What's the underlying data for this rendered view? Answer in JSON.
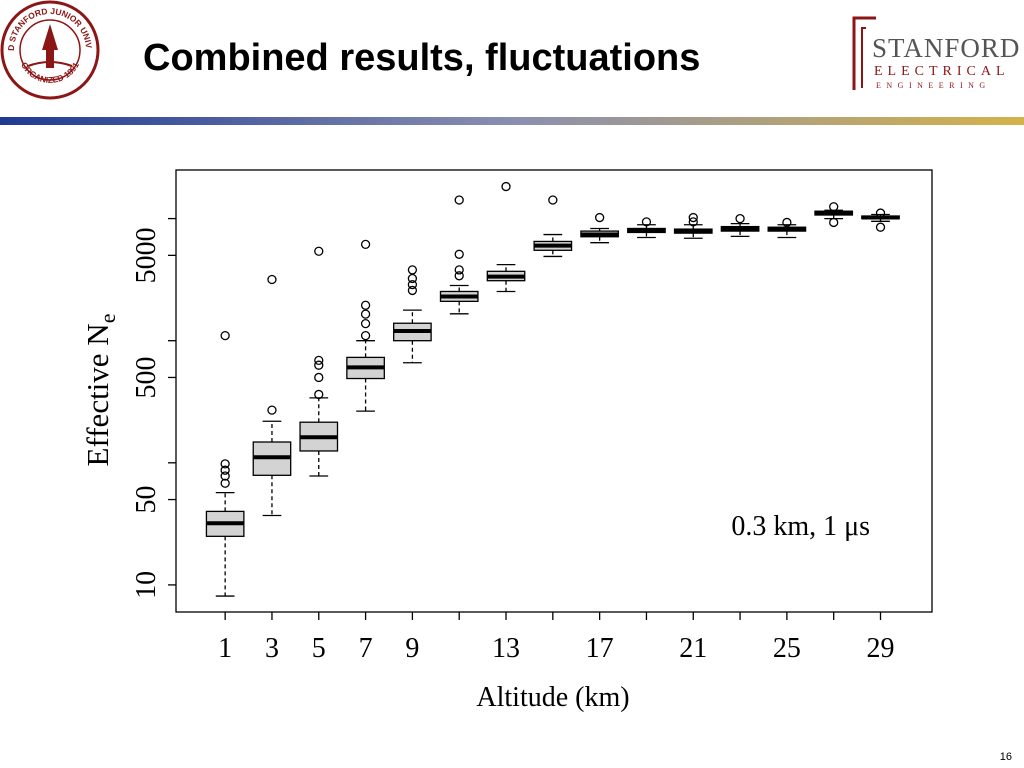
{
  "header": {
    "title": "Combined results, fluctuations",
    "seal_text": "LELAND STANFORD JUNIOR UNIVERSITY",
    "seal_year": "ORGANIZED 1891",
    "logo_line1": "STANFORD",
    "logo_line2": "ELECTRICAL",
    "logo_line3": "ENGINEERING"
  },
  "page_number": "16",
  "chart_data": {
    "type": "box",
    "xlabel": "Altitude (km)",
    "ylabel": "Effective N",
    "ylabel_subscript": "e",
    "annotation": "0.3 km, 1 μs",
    "log_y": true,
    "box_color": "#d3d3d3",
    "xlim": [
      -1.1,
      31.2
    ],
    "xticks": [
      1,
      3,
      5,
      7,
      9,
      13,
      17,
      21,
      25,
      29
    ],
    "minor_xticks": [
      11,
      15,
      19,
      23,
      27
    ],
    "ylim": [
      6,
      25000
    ],
    "yticks": [
      10,
      50,
      500,
      5000
    ],
    "minor_yticks": [
      100,
      1000,
      10000
    ],
    "boxes": [
      {
        "x": 1,
        "low": 8.1,
        "q1": 25,
        "median": 32,
        "q3": 40,
        "high": 57,
        "outliers": [
          68,
          78,
          87,
          98,
          1100
        ]
      },
      {
        "x": 3,
        "low": 37,
        "q1": 79,
        "median": 111,
        "q3": 148,
        "high": 219,
        "outliers": [
          270,
          3170
        ]
      },
      {
        "x": 5,
        "low": 78,
        "q1": 125,
        "median": 162,
        "q3": 215,
        "high": 340,
        "outliers": [
          363,
          500,
          630,
          690,
          5400
        ]
      },
      {
        "x": 7,
        "low": 265,
        "q1": 490,
        "median": 605,
        "q3": 730,
        "high": 1000,
        "outliers": [
          1100,
          1380,
          1650,
          1950,
          6150
        ]
      },
      {
        "x": 9,
        "low": 660,
        "q1": 1000,
        "median": 1200,
        "q3": 1390,
        "high": 1780,
        "outliers": [
          2580,
          2880,
          3230,
          3800
        ]
      },
      {
        "x": 11,
        "low": 1660,
        "q1": 2100,
        "median": 2300,
        "q3": 2530,
        "high": 2830,
        "outliers": [
          3400,
          3800,
          5100,
          14200
        ]
      },
      {
        "x": 13,
        "low": 2530,
        "q1": 3100,
        "median": 3350,
        "q3": 3700,
        "high": 4200,
        "outliers": [
          18300
        ]
      },
      {
        "x": 15,
        "low": 4900,
        "q1": 5500,
        "median": 6000,
        "q3": 6500,
        "high": 7400,
        "outliers": [
          14200
        ]
      },
      {
        "x": 17,
        "low": 6350,
        "q1": 7100,
        "median": 7400,
        "q3": 7900,
        "high": 8300,
        "outliers": [
          10200
        ]
      },
      {
        "x": 19,
        "low": 7000,
        "q1": 7700,
        "median": 8000,
        "q3": 8300,
        "high": 8900,
        "outliers": [
          9400
        ]
      },
      {
        "x": 21,
        "low": 6900,
        "q1": 7600,
        "median": 7900,
        "q3": 8200,
        "high": 8900,
        "outliers": [
          9400,
          10200
        ]
      },
      {
        "x": 23,
        "low": 7150,
        "q1": 7900,
        "median": 8300,
        "q3": 8600,
        "high": 9100,
        "outliers": [
          10000
        ]
      },
      {
        "x": 25,
        "low": 7000,
        "q1": 7900,
        "median": 8200,
        "q3": 8500,
        "high": 8900,
        "outliers": [
          9300
        ]
      },
      {
        "x": 27,
        "low": 10000,
        "q1": 10700,
        "median": 11100,
        "q3": 11500,
        "high": 11700,
        "outliers": [
          9300,
          12500
        ]
      },
      {
        "x": 29,
        "low": 9500,
        "q1": 10000,
        "median": 10200,
        "q3": 10500,
        "high": 10800,
        "outliers": [
          8500,
          11100
        ]
      }
    ]
  }
}
